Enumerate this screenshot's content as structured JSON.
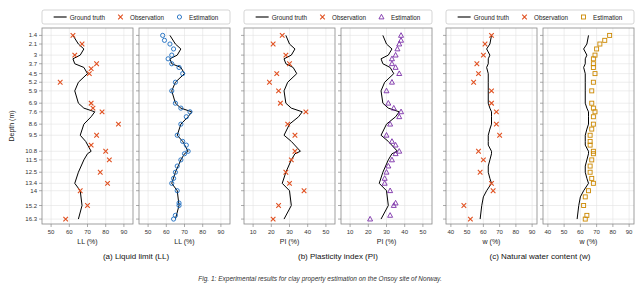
{
  "chart_data": [
    {
      "type": "scatter",
      "xlabel": "LL (%)",
      "ylabel": "Depth (m)",
      "subtitle": "(a) Liquid limit (LL)",
      "annotations": [
        "Fig. 1: Experimental results for clay property estimation on the Onsoy site of Norway."
      ],
      "xlim": [
        45,
        95
      ],
      "xticks": [
        50,
        60,
        70,
        80,
        90
      ],
      "ylim": [
        16.7,
        0.8
      ],
      "yticks": [
        1.4,
        2.1,
        3.0,
        3.7,
        4.5,
        5.2,
        5.9,
        6.9,
        7.6,
        8.6,
        9.5,
        10.8,
        11.5,
        12.5,
        13.4,
        14.0,
        15.2,
        16.3
      ],
      "grid": true,
      "legend": "top",
      "series": [
        {
          "name": "Ground truth",
          "type": "line",
          "color": "#000000",
          "x": [
            62,
            65,
            68,
            66,
            62,
            63,
            68,
            70,
            65,
            63,
            65,
            68,
            74,
            72,
            68,
            66,
            69,
            72,
            70,
            68,
            65,
            63,
            66,
            67,
            65
          ],
          "values": [
            1.4,
            2.1,
            2.5,
            3.0,
            3.3,
            3.7,
            4.0,
            4.5,
            5.2,
            5.9,
            6.9,
            7.3,
            7.6,
            8.0,
            8.6,
            9.5,
            10.0,
            10.8,
            11.0,
            11.5,
            12.5,
            13.4,
            14.0,
            15.2,
            16.3
          ]
        },
        {
          "name": "Observation",
          "type": "scatter",
          "color": "#e05020",
          "marker": "cross",
          "x": [
            62,
            67,
            63,
            75,
            72,
            71,
            55,
            72,
            73,
            78,
            87,
            75,
            72,
            80,
            82,
            77,
            81,
            66,
            70,
            58
          ],
          "values": [
            1.4,
            2.1,
            3.0,
            3.7,
            4.1,
            4.5,
            5.2,
            6.9,
            7.3,
            7.6,
            8.6,
            9.5,
            10.3,
            10.8,
            11.5,
            12.5,
            13.4,
            14.0,
            15.2,
            16.3
          ]
        }
      ]
    },
    {
      "type": "scatter",
      "xlabel": "LL (%)",
      "tick_labels": "x",
      "xlim": [
        45,
        95
      ],
      "xticks": [
        50,
        60,
        70,
        80,
        90
      ],
      "ylim": [
        16.7,
        0.8
      ],
      "yticks": [
        1.4,
        2.1,
        3.0,
        3.7,
        4.5,
        5.2,
        5.9,
        6.9,
        7.6,
        8.6,
        9.5,
        10.8,
        11.5,
        12.5,
        13.4,
        14.0,
        15.2,
        16.3
      ],
      "grid": true,
      "series": [
        {
          "name": "Ground truth",
          "type": "line",
          "color": "#000000",
          "x": [
            62,
            65,
            68,
            66,
            62,
            63,
            68,
            70,
            65,
            63,
            65,
            68,
            74,
            72,
            68,
            66,
            69,
            72,
            70,
            68,
            65,
            63,
            66,
            67,
            65
          ],
          "values": [
            1.4,
            2.1,
            2.5,
            3.0,
            3.3,
            3.7,
            4.0,
            4.5,
            5.2,
            5.9,
            6.9,
            7.3,
            7.6,
            8.0,
            8.6,
            9.5,
            10.0,
            10.8,
            11.0,
            11.5,
            12.5,
            13.4,
            14.0,
            15.2,
            16.3
          ]
        },
        {
          "name": "Estimation",
          "type": "scatter",
          "color": "#1a6bbf",
          "marker": "circle",
          "x": [
            58,
            59,
            62,
            64,
            63,
            61,
            63,
            67,
            69,
            65,
            63,
            65,
            68,
            73,
            71,
            68,
            66,
            69,
            71,
            72,
            70,
            68,
            66,
            65,
            64,
            63,
            66,
            67,
            67,
            65,
            64
          ],
          "values": [
            1.4,
            1.8,
            2.1,
            2.5,
            3.0,
            3.3,
            3.7,
            4.0,
            4.5,
            5.2,
            5.9,
            6.9,
            7.3,
            7.6,
            8.0,
            8.6,
            9.5,
            10.0,
            10.3,
            10.8,
            11.0,
            11.5,
            12.0,
            12.5,
            13.0,
            13.4,
            14.0,
            15.0,
            15.2,
            16.0,
            16.3
          ]
        }
      ]
    },
    {
      "type": "scatter",
      "xlabel": "PI (%)",
      "tick_labels": "x",
      "subtitle": "(b) Plasticity index (PI)",
      "xlim": [
        5,
        55
      ],
      "xticks": [
        10,
        20,
        30,
        40,
        50
      ],
      "ylim": [
        16.7,
        0.8
      ],
      "yticks": [
        1.4,
        2.1,
        3.0,
        3.7,
        4.5,
        5.2,
        5.9,
        6.9,
        7.6,
        8.6,
        9.5,
        10.8,
        11.5,
        12.5,
        13.4,
        14.0,
        15.2,
        16.3
      ],
      "grid": true,
      "legend": "top",
      "series": [
        {
          "name": "Ground truth",
          "type": "line",
          "color": "#000000",
          "x": [
            28,
            30,
            33,
            31,
            27,
            28,
            32,
            34,
            29,
            27,
            28,
            31,
            37,
            35,
            30,
            27,
            31,
            36,
            33,
            31,
            28,
            26,
            30,
            31,
            27
          ],
          "values": [
            1.4,
            2.1,
            2.5,
            3.0,
            3.3,
            3.7,
            4.0,
            4.5,
            5.2,
            5.9,
            6.9,
            7.3,
            7.6,
            8.0,
            8.6,
            9.5,
            10.0,
            10.8,
            11.0,
            11.5,
            12.5,
            13.4,
            14.0,
            15.2,
            16.3
          ]
        },
        {
          "name": "Observation",
          "type": "scatter",
          "color": "#e05020",
          "marker": "cross",
          "x": [
            26,
            21,
            28,
            30,
            23,
            19,
            24,
            25,
            39,
            29,
            33,
            33,
            31,
            28,
            30,
            38,
            24,
            21
          ],
          "values": [
            1.4,
            2.1,
            3.0,
            3.7,
            4.5,
            5.2,
            5.9,
            6.9,
            7.6,
            8.6,
            9.5,
            10.8,
            11.5,
            12.5,
            13.4,
            14.0,
            15.2,
            16.3
          ]
        }
      ]
    },
    {
      "type": "scatter",
      "xlabel": "PI (%)",
      "tick_labels": "x",
      "xlim": [
        5,
        55
      ],
      "xticks": [
        10,
        20,
        30,
        40,
        50
      ],
      "ylim": [
        16.7,
        0.8
      ],
      "yticks": [
        1.4,
        2.1,
        3.0,
        3.7,
        4.5,
        5.2,
        5.9,
        6.9,
        7.6,
        8.6,
        9.5,
        10.8,
        11.5,
        12.5,
        13.4,
        14.0,
        15.2,
        16.3
      ],
      "grid": true,
      "series": [
        {
          "name": "Ground truth",
          "type": "line",
          "color": "#000000",
          "x": [
            28,
            30,
            33,
            31,
            27,
            28,
            32,
            34,
            29,
            27,
            28,
            31,
            37,
            35,
            30,
            27,
            31,
            36,
            33,
            31,
            28,
            26,
            30,
            31,
            27
          ],
          "values": [
            1.4,
            2.1,
            2.5,
            3.0,
            3.3,
            3.7,
            4.0,
            4.5,
            5.2,
            5.9,
            6.9,
            7.3,
            7.6,
            8.0,
            8.6,
            9.5,
            10.0,
            10.8,
            11.0,
            11.5,
            12.5,
            13.4,
            14.0,
            15.2,
            16.3
          ]
        },
        {
          "name": "Estimation",
          "type": "scatter",
          "color": "#7b2fa8",
          "marker": "triangle",
          "x": [
            38,
            38,
            37,
            36,
            35,
            33,
            33,
            35,
            37,
            33,
            30,
            31,
            34,
            38,
            37,
            32,
            30,
            33,
            35,
            37,
            35,
            33,
            31,
            30,
            29,
            29,
            32,
            35,
            34,
            32,
            21
          ],
          "values": [
            1.4,
            1.8,
            2.1,
            2.5,
            3.0,
            3.3,
            3.7,
            4.0,
            4.5,
            5.2,
            5.9,
            6.9,
            7.3,
            7.6,
            8.0,
            8.6,
            9.5,
            10.0,
            10.3,
            10.8,
            11.0,
            11.5,
            12.0,
            12.5,
            13.0,
            13.4,
            14.0,
            15.0,
            15.2,
            16.0,
            16.3
          ]
        }
      ]
    },
    {
      "type": "scatter",
      "xlabel": "w (%)",
      "tick_labels": "x",
      "subtitle": "(c) Natural water content (w)",
      "xlim": [
        37,
        93
      ],
      "xticks": [
        40,
        50,
        60,
        70,
        80,
        90
      ],
      "ylim": [
        16.7,
        0.8
      ],
      "yticks": [
        1.4,
        2.1,
        3.0,
        3.7,
        4.5,
        5.2,
        5.9,
        6.9,
        7.6,
        8.6,
        9.5,
        10.8,
        11.5,
        12.5,
        13.4,
        14.0,
        15.2,
        16.3
      ],
      "grid": true,
      "legend": "top",
      "series": [
        {
          "name": "Ground truth",
          "type": "line",
          "color": "#000000",
          "x": [
            65,
            64,
            62,
            64,
            63,
            63,
            62,
            63,
            63,
            63,
            63,
            64,
            65,
            65,
            65,
            64,
            63,
            63,
            63,
            65,
            65,
            64,
            63,
            63,
            64,
            65,
            62,
            60,
            59,
            58
          ],
          "values": [
            1.4,
            2.1,
            2.5,
            3.0,
            3.3,
            3.7,
            4.0,
            4.5,
            5.2,
            5.9,
            6.9,
            7.3,
            7.6,
            8.0,
            8.6,
            9.0,
            9.5,
            10.0,
            10.3,
            10.8,
            11.0,
            11.5,
            12.0,
            12.5,
            13.0,
            13.4,
            14.0,
            14.5,
            15.2,
            16.3
          ]
        },
        {
          "name": "Observation",
          "type": "scatter",
          "color": "#e05020",
          "marker": "cross",
          "x": [
            65,
            61,
            60,
            56,
            57,
            54,
            65,
            65,
            68,
            68,
            70,
            57,
            60,
            58,
            65,
            66,
            48,
            52
          ],
          "values": [
            1.4,
            2.1,
            3.0,
            3.7,
            4.5,
            5.2,
            5.9,
            6.9,
            7.6,
            8.6,
            9.5,
            10.8,
            11.5,
            12.5,
            13.4,
            14.0,
            15.2,
            16.3
          ]
        }
      ]
    },
    {
      "type": "scatter",
      "xlabel": "w (%)",
      "tick_labels": "x",
      "xlim": [
        37,
        93
      ],
      "xticks": [
        40,
        50,
        60,
        70,
        80,
        90
      ],
      "ylim": [
        16.7,
        0.8
      ],
      "yticks": [
        1.4,
        2.1,
        3.0,
        3.7,
        4.5,
        5.2,
        5.9,
        6.9,
        7.6,
        8.6,
        9.5,
        10.8,
        11.5,
        12.5,
        13.4,
        14.0,
        15.2,
        16.3
      ],
      "grid": true,
      "series": [
        {
          "name": "Ground truth",
          "type": "line",
          "color": "#000000",
          "x": [
            65,
            64,
            62,
            64,
            63,
            63,
            62,
            63,
            63,
            63,
            63,
            64,
            65,
            65,
            65,
            64,
            63,
            63,
            63,
            65,
            65,
            64,
            63,
            63,
            64,
            65,
            62,
            60,
            59,
            58
          ],
          "values": [
            1.4,
            2.1,
            2.5,
            3.0,
            3.3,
            3.7,
            4.0,
            4.5,
            5.2,
            5.9,
            6.9,
            7.3,
            7.6,
            8.0,
            8.6,
            9.0,
            9.5,
            10.0,
            10.3,
            10.8,
            11.0,
            11.5,
            12.0,
            12.5,
            13.0,
            13.4,
            14.0,
            14.5,
            15.2,
            16.3
          ]
        },
        {
          "name": "Estimation",
          "type": "scatter",
          "color": "#cc8800",
          "marker": "square",
          "x": [
            78,
            75,
            72,
            70,
            69,
            68,
            68,
            68,
            69,
            68,
            67,
            67,
            68,
            69,
            68,
            68,
            67,
            66,
            66,
            66,
            68,
            68,
            67,
            66,
            66,
            67,
            68,
            65,
            63,
            62,
            64,
            63
          ],
          "values": [
            1.4,
            1.8,
            2.1,
            2.5,
            3.0,
            3.3,
            3.7,
            4.0,
            4.5,
            5.2,
            5.9,
            6.9,
            7.3,
            7.6,
            8.0,
            8.6,
            9.0,
            9.5,
            10.0,
            10.3,
            10.8,
            11.0,
            11.5,
            12.0,
            12.5,
            13.0,
            13.4,
            14.0,
            14.5,
            15.2,
            16.0,
            16.3
          ]
        }
      ]
    }
  ]
}
